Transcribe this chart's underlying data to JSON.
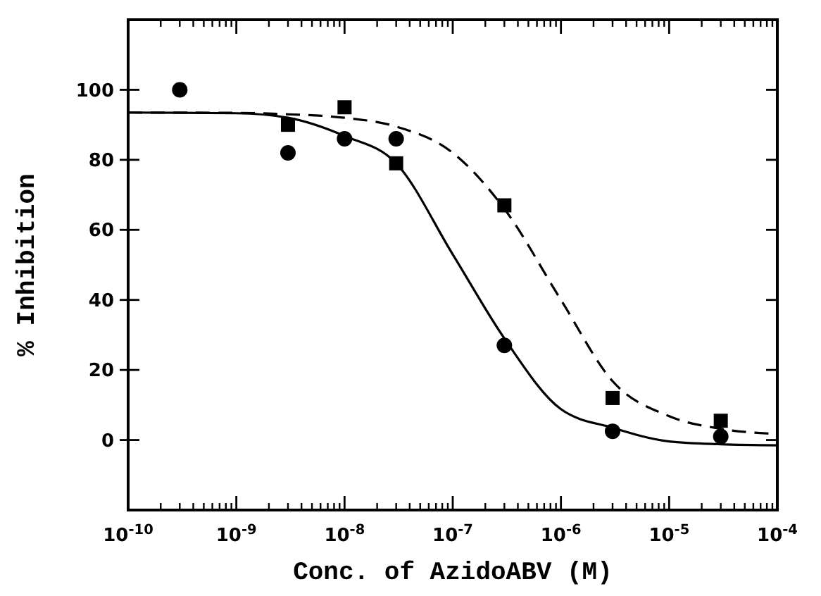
{
  "chart_data": {
    "type": "scatter",
    "xlabel": "Conc. of AzidoABV (M)",
    "ylabel": "% Inhibition",
    "log": "x",
    "xlim": [
      1e-10,
      0.0001
    ],
    "xticks": [
      {
        "value": 1e-10,
        "label": "10$^{-10}$"
      },
      {
        "value": 1e-09,
        "label": "10$^{-9}$"
      },
      {
        "value": 1e-08,
        "label": "10$^{-8}$"
      },
      {
        "value": 1e-07,
        "label": "10$^{-7}$"
      },
      {
        "value": 1e-06,
        "label": "10$^{-6}$"
      },
      {
        "value": 1e-05,
        "label": "10$^{-5}$"
      },
      {
        "value": 0.0001,
        "label": "10$^{-4}$"
      }
    ],
    "ylim": [
      -20,
      120
    ],
    "yticks": [
      0,
      20,
      40,
      60,
      80,
      100
    ],
    "grid": false,
    "series": [
      {
        "marker": "circle",
        "color": "#000000",
        "x": [
          3e-10,
          3e-09,
          1e-08,
          3e-08,
          3e-07,
          3e-06,
          3e-05
        ],
        "values": [
          100,
          82,
          86,
          86,
          27,
          2.5,
          1
        ]
      },
      {
        "marker": "square",
        "color": "#000000",
        "x": [
          3e-09,
          1e-08,
          3e-08,
          3e-07,
          3e-06,
          3e-05
        ],
        "values": [
          90,
          95,
          79,
          67,
          12,
          5.5
        ]
      },
      {
        "type": "line",
        "line_style": "solid",
        "marker": "none",
        "color": "#000000",
        "x": [
          1e-10,
          1e-09,
          3e-09,
          1e-08,
          3e-08,
          1e-07,
          3e-07,
          1e-06,
          3e-06,
          1e-05,
          3e-05,
          0.0001
        ],
        "values": [
          93.5,
          93.3,
          92,
          86.8,
          79,
          53,
          29,
          8.8,
          3.5,
          -0.4,
          -1.2,
          -1.5
        ]
      },
      {
        "type": "line",
        "line_style": "dashed",
        "marker": "none",
        "color": "#000000",
        "x": [
          1e-10,
          1e-09,
          3e-09,
          1e-08,
          3e-08,
          1e-07,
          3e-07,
          1e-06,
          3e-06,
          1e-05,
          3e-05,
          0.0001
        ],
        "values": [
          93.5,
          93.4,
          93,
          92,
          89.5,
          82,
          66,
          40,
          16.8,
          6.8,
          3.2,
          1.7
        ]
      }
    ]
  }
}
